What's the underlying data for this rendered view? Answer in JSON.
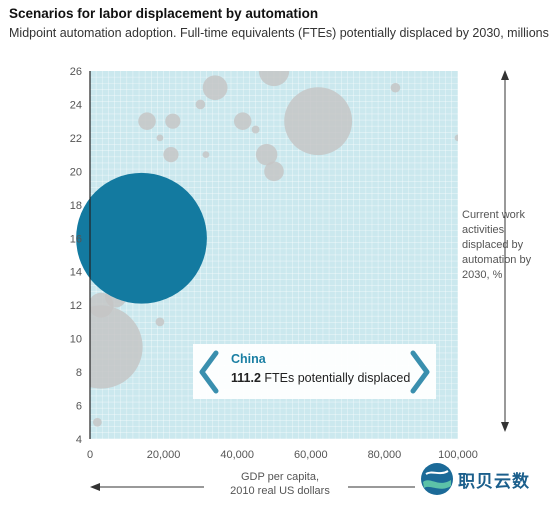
{
  "header": {
    "title": "Scenarios for labor displacement by automation",
    "subtitle": "Midpoint automation adoption. Full-time equivalents (FTEs) potentially displaced by 2030, millions"
  },
  "y_side_label": "Current work activities displaced by automation by 2030, %",
  "x_axis_label_line1": "GDP per capita,",
  "x_axis_label_line2": "2010 real US dollars",
  "callout": {
    "country": "China",
    "value": "111.2",
    "text": "FTEs potentially displaced"
  },
  "watermark": {
    "text": "职贝云数"
  },
  "colors": {
    "plot_bg": "#cbe8ee",
    "grid": "#ffffff",
    "china": "#137aa0",
    "other_bubbles": "#c4c4c4",
    "arrow": "#3a8fae"
  },
  "chart_data": {
    "type": "scatter",
    "title": "Scenarios for labor displacement by automation",
    "xlabel": "GDP per capita, 2010 real US dollars",
    "ylabel": "Current work activities displaced by automation by 2030, %",
    "xlim": [
      0,
      100000
    ],
    "ylim": [
      4,
      26
    ],
    "x_ticks": [
      "0",
      "20,000",
      "40,000",
      "60,000",
      "80,000",
      "100,000"
    ],
    "y_ticks": [
      "4",
      "6",
      "8",
      "10",
      "12",
      "14",
      "16",
      "18",
      "20",
      "22",
      "24",
      "26"
    ],
    "grid": true,
    "series": [
      {
        "name": "China",
        "points": [
          {
            "x": 14000,
            "y": 16,
            "size": 111.2
          }
        ]
      },
      {
        "name": "",
        "points": [
          {
            "x": 50000,
            "y": 26,
            "size": 6
          },
          {
            "x": 62000,
            "y": 23,
            "size": 30
          },
          {
            "x": 34000,
            "y": 25,
            "size": 4
          },
          {
            "x": 30000,
            "y": 24,
            "size": 0.6
          },
          {
            "x": 15500,
            "y": 23,
            "size": 2
          },
          {
            "x": 22500,
            "y": 23,
            "size": 1.5
          },
          {
            "x": 41500,
            "y": 23,
            "size": 2
          },
          {
            "x": 45000,
            "y": 22.5,
            "size": 0.4
          },
          {
            "x": 19000,
            "y": 22,
            "size": 0.3
          },
          {
            "x": 31500,
            "y": 21,
            "size": 0.3
          },
          {
            "x": 22000,
            "y": 21,
            "size": 1.5
          },
          {
            "x": 48000,
            "y": 21,
            "size": 3
          },
          {
            "x": 50000,
            "y": 20,
            "size": 2.5
          },
          {
            "x": 83000,
            "y": 25,
            "size": 0.6
          },
          {
            "x": 100000,
            "y": 22,
            "size": 0.3
          },
          {
            "x": 3000,
            "y": 12,
            "size": 4
          },
          {
            "x": 7000,
            "y": 12.5,
            "size": 3
          },
          {
            "x": 19000,
            "y": 11,
            "size": 0.5
          },
          {
            "x": 3000,
            "y": 9.5,
            "size": 45
          },
          {
            "x": 2000,
            "y": 5,
            "size": 0.5
          }
        ]
      }
    ]
  }
}
